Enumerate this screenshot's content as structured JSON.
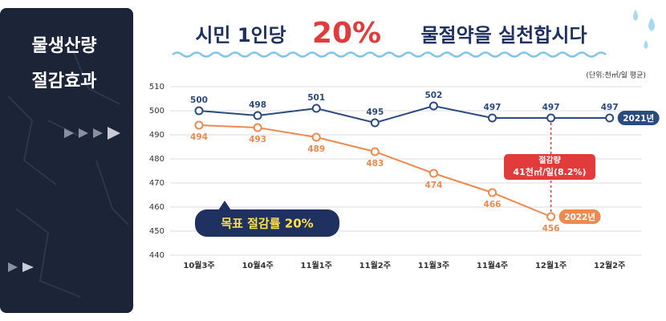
{
  "chart_data": {
    "type": "line",
    "side_title": [
      "물생산량",
      "절감효과"
    ],
    "title_parts": [
      "시민 1인당",
      "20%",
      "물절약을 실천합시다"
    ],
    "unit": "(단위:천㎥/일 평균)",
    "categories": [
      "10월3주",
      "10월4주",
      "11월1주",
      "11월2주",
      "11월3주",
      "11월4주",
      "12월1주",
      "12월2주"
    ],
    "series": [
      {
        "name": "2021년",
        "color": "#2b4a80",
        "values": [
          500,
          498,
          501,
          495,
          502,
          497,
          497,
          497
        ]
      },
      {
        "name": "2022년",
        "color": "#ec8a4f",
        "values": [
          494,
          493,
          489,
          483,
          474,
          466,
          456,
          null
        ]
      }
    ],
    "ylim": [
      440,
      510
    ],
    "yticks": [
      440,
      450,
      460,
      470,
      480,
      490,
      500,
      510
    ],
    "grid": true,
    "annotations": [
      {
        "lines": [
          "절감량",
          "41천㎥/일(8.2%)"
        ]
      },
      {
        "text": "목표 절감률 20%"
      }
    ]
  }
}
